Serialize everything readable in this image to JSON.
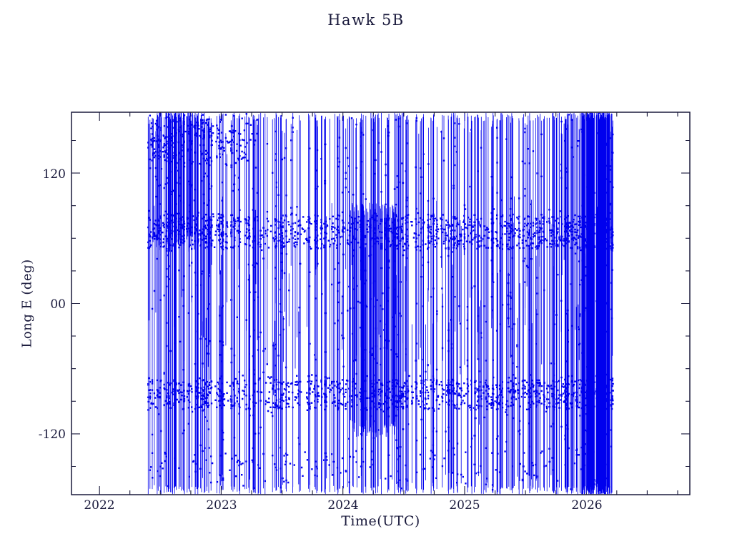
{
  "chart_data": {
    "type": "scatter",
    "title": "Hawk 5B",
    "xlabel": "Time(UTC)",
    "ylabel": "Long E (deg)",
    "xlim": [
      2021.77,
      2026.85
    ],
    "ylim": [
      -176,
      176
    ],
    "x_ticks": [
      2022,
      2023,
      2024,
      2025,
      2026
    ],
    "x_minor_step": 0.25,
    "y_ticks": [
      120,
      0,
      -120
    ],
    "y_tick_labels": [
      "120",
      "00",
      "-120"
    ],
    "y_minor_step": 30,
    "grid": false,
    "legend": false,
    "series_color": "#0000ee",
    "ink_color": "#1a1a3c",
    "background_color": "#ffffff",
    "description": "Dense blue vertical traces of sub-satellite longitude (deg East) versus time from mid-2022.4 to early 2026.2; traces sweep nearly the full -176 to 176 deg range with concentrated horizontal bands near +66 deg and -84 deg, a heavy cluster around 2024.0-2024.45, and a near-solid block at the right edge near 2026.0-2026.2.",
    "data_extent": {
      "x_start": 2022.4,
      "x_end": 2026.22,
      "y_min": -176,
      "y_max": 176
    },
    "generator": {
      "seed": 42,
      "line_width": 0.8,
      "marker_size": 2.4,
      "columns": [
        {
          "x0": 2022.4,
          "x1": 2022.82,
          "n": 58,
          "pFull": 0.75,
          "topHeavy": true
        },
        {
          "x0": 2022.82,
          "x1": 2023.12,
          "n": 42,
          "pFull": 0.6,
          "topHeavy": true
        },
        {
          "x0": 2023.12,
          "x1": 2023.5,
          "n": 42,
          "pFull": 0.6,
          "topHeavy": false
        },
        {
          "x0": 2023.5,
          "x1": 2023.95,
          "n": 40,
          "pFull": 0.55,
          "topHeavy": false
        },
        {
          "x0": 2023.95,
          "x1": 2024.55,
          "n": 80,
          "pFull": 0.6,
          "topHeavy": false
        },
        {
          "x0": 2024.55,
          "x1": 2024.95,
          "n": 44,
          "pFull": 0.55,
          "topHeavy": false
        },
        {
          "x0": 2024.95,
          "x1": 2025.45,
          "n": 58,
          "pFull": 0.6,
          "topHeavy": false
        },
        {
          "x0": 2025.45,
          "x1": 2025.82,
          "n": 45,
          "pFull": 0.55,
          "topHeavy": false
        },
        {
          "x0": 2025.82,
          "x1": 2026.22,
          "n": 100,
          "pFull": 0.8,
          "topHeavy": false
        }
      ],
      "blocks": [
        {
          "x0": 2024.05,
          "x1": 2024.45,
          "y0": -115,
          "y1": 85,
          "n": 70
        },
        {
          "x0": 2025.96,
          "x1": 2026.2,
          "y0": -176,
          "y1": 176,
          "n": 60
        },
        {
          "x0": 2022.44,
          "x1": 2022.78,
          "y0": 55,
          "y1": 176,
          "n": 40
        }
      ],
      "bands": [
        {
          "y": 66,
          "sd": 16,
          "n": 420,
          "x0": 2022.4,
          "x1": 2026.22
        },
        {
          "y": -84,
          "sd": 14,
          "n": 380,
          "x0": 2022.4,
          "x1": 2026.22
        },
        {
          "y": 150,
          "sd": 18,
          "n": 160,
          "x0": 2022.4,
          "x1": 2023.3
        },
        {
          "y": -150,
          "sd": 16,
          "n": 140,
          "x0": 2022.4,
          "x1": 2026.22
        }
      ]
    }
  }
}
